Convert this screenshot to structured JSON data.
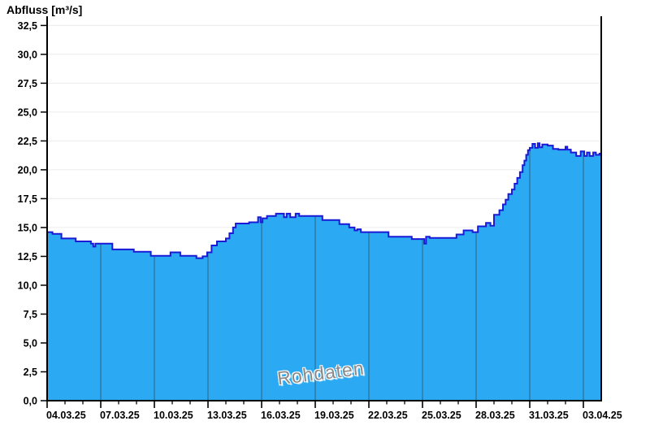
{
  "title": "Abfluss [m³/s]",
  "watermark": "Rohdaten",
  "colors": {
    "background": "#ffffff",
    "area_fill": "#2BA9F2",
    "series_line": "#1A1AD6",
    "h_gridline": "#ececec",
    "v_gridline": "#2f7096",
    "axis": "#000000",
    "text": "#000000",
    "watermark_text": "#8a8a8a"
  },
  "chart_data": {
    "type": "area",
    "title": "Abfluss [m³/s]",
    "ylabel": "Abfluss [m³/s]",
    "annotations": [
      "Rohdaten"
    ],
    "legend": "none",
    "grid": "horizontal light gray above fill; vertical dark lines inside fill at major date ticks",
    "xlim_days": [
      0,
      31
    ],
    "ylim": [
      0,
      33.3
    ],
    "y_major_step": 2.5,
    "y_tick_labels": [
      "0,0",
      "2,5",
      "5,0",
      "7,5",
      "10,0",
      "12,5",
      "15,0",
      "17,5",
      "20,0",
      "22,5",
      "25,0",
      "27,5",
      "30,0",
      "32,5"
    ],
    "x_minor_every_days": 1,
    "x_major_ticks": [
      {
        "day": 0,
        "label": "04.03.25"
      },
      {
        "day": 3,
        "label": "07.03.25"
      },
      {
        "day": 6,
        "label": "10.03.25"
      },
      {
        "day": 9,
        "label": "13.03.25"
      },
      {
        "day": 12,
        "label": "16.03.25"
      },
      {
        "day": 15,
        "label": "19.03.25"
      },
      {
        "day": 18,
        "label": "22.03.25"
      },
      {
        "day": 21,
        "label": "25.03.25"
      },
      {
        "day": 24,
        "label": "28.03.25"
      },
      {
        "day": 27,
        "label": "31.03.25"
      },
      {
        "day": 30,
        "label": "03.04.25"
      }
    ],
    "series": [
      {
        "name": "Abfluss Rohdaten",
        "unit": "m³/s",
        "interpolation": "step-after",
        "points_day_value": [
          [
            0.0,
            14.6
          ],
          [
            0.3,
            14.45
          ],
          [
            0.8,
            14.05
          ],
          [
            1.6,
            13.8
          ],
          [
            2.45,
            13.6
          ],
          [
            2.58,
            13.35
          ],
          [
            2.7,
            13.6
          ],
          [
            3.65,
            13.1
          ],
          [
            4.85,
            12.9
          ],
          [
            5.8,
            12.55
          ],
          [
            6.9,
            12.85
          ],
          [
            7.45,
            12.55
          ],
          [
            8.35,
            12.35
          ],
          [
            8.7,
            12.5
          ],
          [
            8.95,
            12.85
          ],
          [
            9.2,
            13.45
          ],
          [
            9.5,
            13.8
          ],
          [
            10.0,
            14.05
          ],
          [
            10.2,
            14.5
          ],
          [
            10.4,
            15.0
          ],
          [
            10.55,
            15.35
          ],
          [
            11.3,
            15.45
          ],
          [
            11.8,
            15.9
          ],
          [
            11.95,
            15.45
          ],
          [
            12.05,
            15.8
          ],
          [
            12.3,
            16.0
          ],
          [
            12.8,
            16.2
          ],
          [
            13.25,
            15.9
          ],
          [
            13.4,
            16.2
          ],
          [
            13.6,
            15.9
          ],
          [
            13.9,
            16.2
          ],
          [
            14.1,
            16.0
          ],
          [
            15.4,
            15.65
          ],
          [
            16.35,
            15.3
          ],
          [
            16.9,
            15.0
          ],
          [
            17.2,
            14.75
          ],
          [
            17.35,
            14.85
          ],
          [
            17.55,
            14.6
          ],
          [
            19.1,
            14.2
          ],
          [
            20.4,
            14.0
          ],
          [
            21.1,
            13.6
          ],
          [
            21.2,
            14.2
          ],
          [
            21.4,
            14.1
          ],
          [
            22.9,
            14.4
          ],
          [
            23.3,
            14.75
          ],
          [
            23.8,
            14.6
          ],
          [
            24.1,
            15.1
          ],
          [
            24.55,
            15.4
          ],
          [
            24.8,
            15.15
          ],
          [
            25.0,
            16.1
          ],
          [
            25.3,
            16.5
          ],
          [
            25.5,
            17.0
          ],
          [
            25.65,
            17.4
          ],
          [
            25.8,
            17.9
          ],
          [
            26.0,
            18.3
          ],
          [
            26.15,
            18.8
          ],
          [
            26.3,
            19.3
          ],
          [
            26.45,
            19.8
          ],
          [
            26.6,
            20.4
          ],
          [
            26.7,
            20.8
          ],
          [
            26.8,
            21.3
          ],
          [
            26.9,
            21.7
          ],
          [
            27.0,
            21.9
          ],
          [
            27.15,
            22.25
          ],
          [
            27.3,
            21.9
          ],
          [
            27.45,
            22.3
          ],
          [
            27.55,
            21.95
          ],
          [
            27.7,
            22.2
          ],
          [
            28.0,
            22.1
          ],
          [
            28.3,
            21.8
          ],
          [
            28.6,
            21.75
          ],
          [
            29.0,
            22.0
          ],
          [
            29.1,
            21.75
          ],
          [
            29.3,
            21.5
          ],
          [
            29.6,
            21.2
          ],
          [
            29.85,
            21.6
          ],
          [
            30.05,
            21.2
          ],
          [
            30.2,
            21.5
          ],
          [
            30.35,
            21.2
          ],
          [
            30.55,
            21.5
          ],
          [
            30.7,
            21.3
          ],
          [
            30.9,
            21.4
          ]
        ]
      }
    ]
  }
}
